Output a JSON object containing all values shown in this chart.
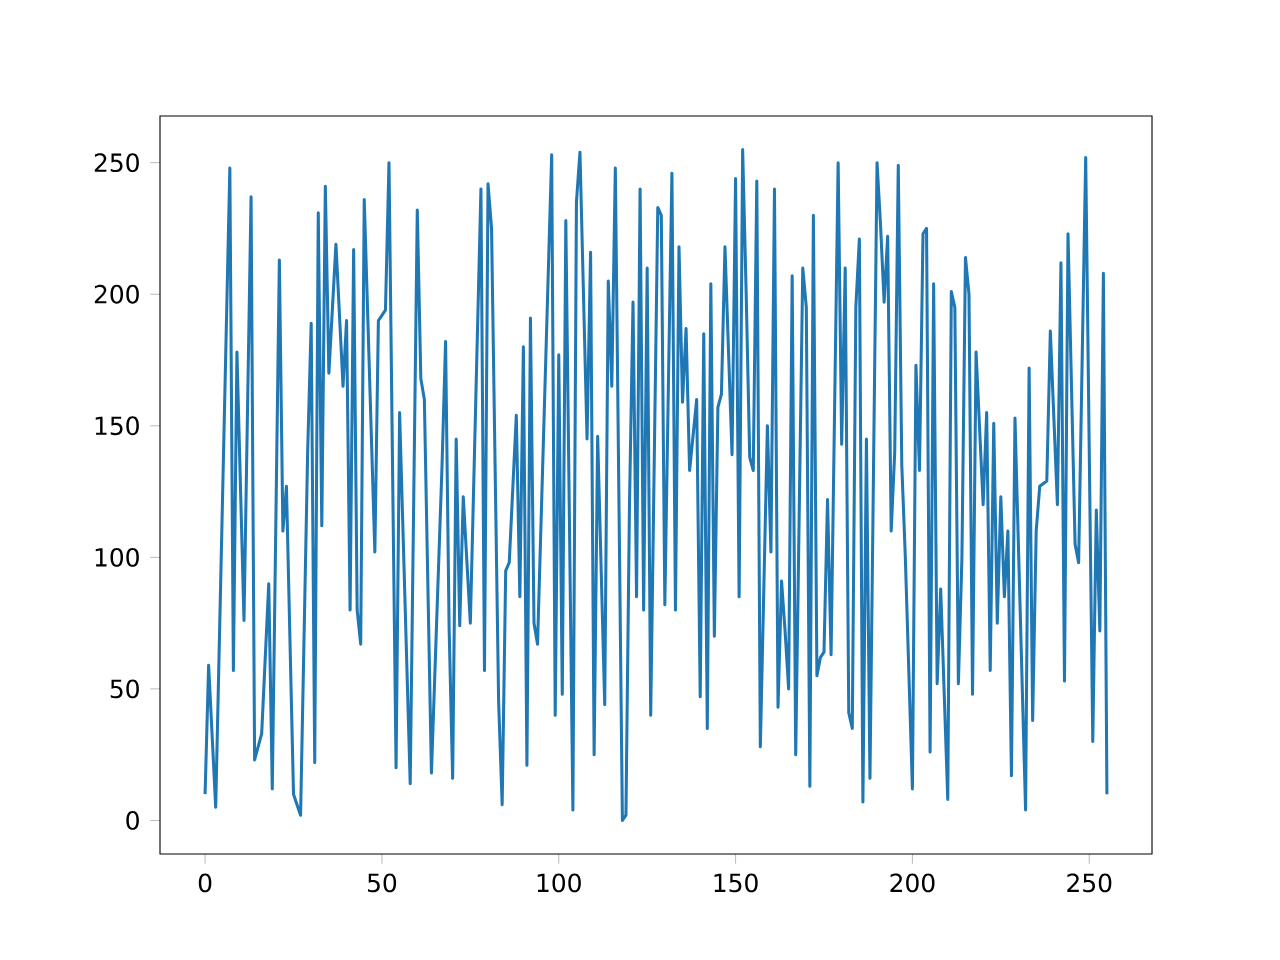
{
  "chart_data": {
    "type": "line",
    "color": "#1f77b4",
    "xlim": [
      -12.75,
      267.75
    ],
    "ylim": [
      -12.75,
      267.75
    ],
    "xticks": [
      0,
      50,
      100,
      150,
      200,
      250
    ],
    "yticks": [
      0,
      50,
      100,
      150,
      200,
      250
    ],
    "grid": false,
    "marker": "none",
    "line_style": "solid",
    "x": [
      0,
      1,
      3,
      7,
      8,
      9,
      11,
      13,
      14,
      16,
      18,
      19,
      21,
      22,
      23,
      25,
      27,
      29,
      30,
      31,
      32,
      33,
      34,
      35,
      37,
      39,
      40,
      41,
      42,
      43,
      44,
      45,
      48,
      49,
      51,
      52,
      54,
      55,
      58,
      60,
      61,
      62,
      64,
      67,
      68,
      69,
      70,
      71,
      72,
      73,
      75,
      78,
      79,
      80,
      81,
      83,
      84,
      85,
      86,
      88,
      89,
      90,
      91,
      92,
      93,
      94,
      98,
      99,
      100,
      101,
      102,
      104,
      105,
      106,
      108,
      109,
      110,
      111,
      113,
      114,
      115,
      116,
      118,
      119,
      120,
      121,
      122,
      123,
      124,
      125,
      126,
      128,
      129,
      130,
      131,
      132,
      133,
      134,
      135,
      136,
      137,
      139,
      140,
      141,
      142,
      143,
      144,
      145,
      146,
      147,
      149,
      150,
      151,
      152,
      153,
      154,
      155,
      156,
      157,
      159,
      160,
      161,
      162,
      163,
      164,
      165,
      166,
      167,
      169,
      170,
      171,
      172,
      173,
      174,
      175,
      176,
      177,
      179,
      180,
      181,
      182,
      183,
      184,
      185,
      186,
      187,
      188,
      190,
      191,
      192,
      193,
      194,
      195,
      196,
      197,
      198,
      200,
      201,
      202,
      203,
      204,
      205,
      206,
      207,
      208,
      210,
      211,
      212,
      213,
      214,
      215,
      216,
      217,
      218,
      220,
      221,
      222,
      223,
      224,
      225,
      226,
      227,
      228,
      229,
      232,
      233,
      234,
      235,
      236,
      238,
      239,
      241,
      242,
      243,
      244,
      246,
      247,
      249,
      251,
      252,
      253,
      254,
      255
    ],
    "values": [
      10,
      59,
      5,
      248,
      57,
      178,
      76,
      237,
      23,
      33,
      90,
      12,
      213,
      110,
      127,
      10,
      2,
      140,
      189,
      22,
      231,
      112,
      241,
      170,
      219,
      165,
      190,
      80,
      217,
      80,
      67,
      236,
      102,
      190,
      194,
      250,
      20,
      155,
      14,
      232,
      168,
      160,
      18,
      135,
      182,
      73,
      16,
      145,
      74,
      123,
      75,
      240,
      57,
      242,
      225,
      45,
      6,
      95,
      98,
      154,
      85,
      180,
      21,
      191,
      75,
      67,
      253,
      40,
      177,
      48,
      228,
      4,
      235,
      254,
      145,
      216,
      25,
      146,
      44,
      205,
      165,
      248,
      0,
      2,
      120,
      197,
      85,
      240,
      80,
      210,
      40,
      233,
      230,
      82,
      165,
      246,
      80,
      218,
      159,
      187,
      133,
      160,
      47,
      185,
      35,
      204,
      70,
      157,
      162,
      218,
      139,
      244,
      85,
      255,
      200,
      138,
      133,
      243,
      28,
      150,
      102,
      240,
      43,
      91,
      72,
      50,
      207,
      25,
      210,
      195,
      13,
      230,
      55,
      62,
      64,
      122,
      63,
      250,
      143,
      210,
      41,
      35,
      195,
      221,
      7,
      145,
      16,
      250,
      226,
      197,
      222,
      110,
      140,
      249,
      135,
      100,
      12,
      173,
      133,
      223,
      225,
      26,
      204,
      52,
      88,
      8,
      201,
      195,
      52,
      100,
      214,
      200,
      48,
      178,
      120,
      155,
      57,
      151,
      75,
      123,
      85,
      110,
      17,
      153,
      4,
      172,
      38,
      110,
      127,
      129,
      186,
      120,
      212,
      53,
      223,
      105,
      98,
      252,
      30,
      118,
      72,
      208,
      10
    ]
  }
}
